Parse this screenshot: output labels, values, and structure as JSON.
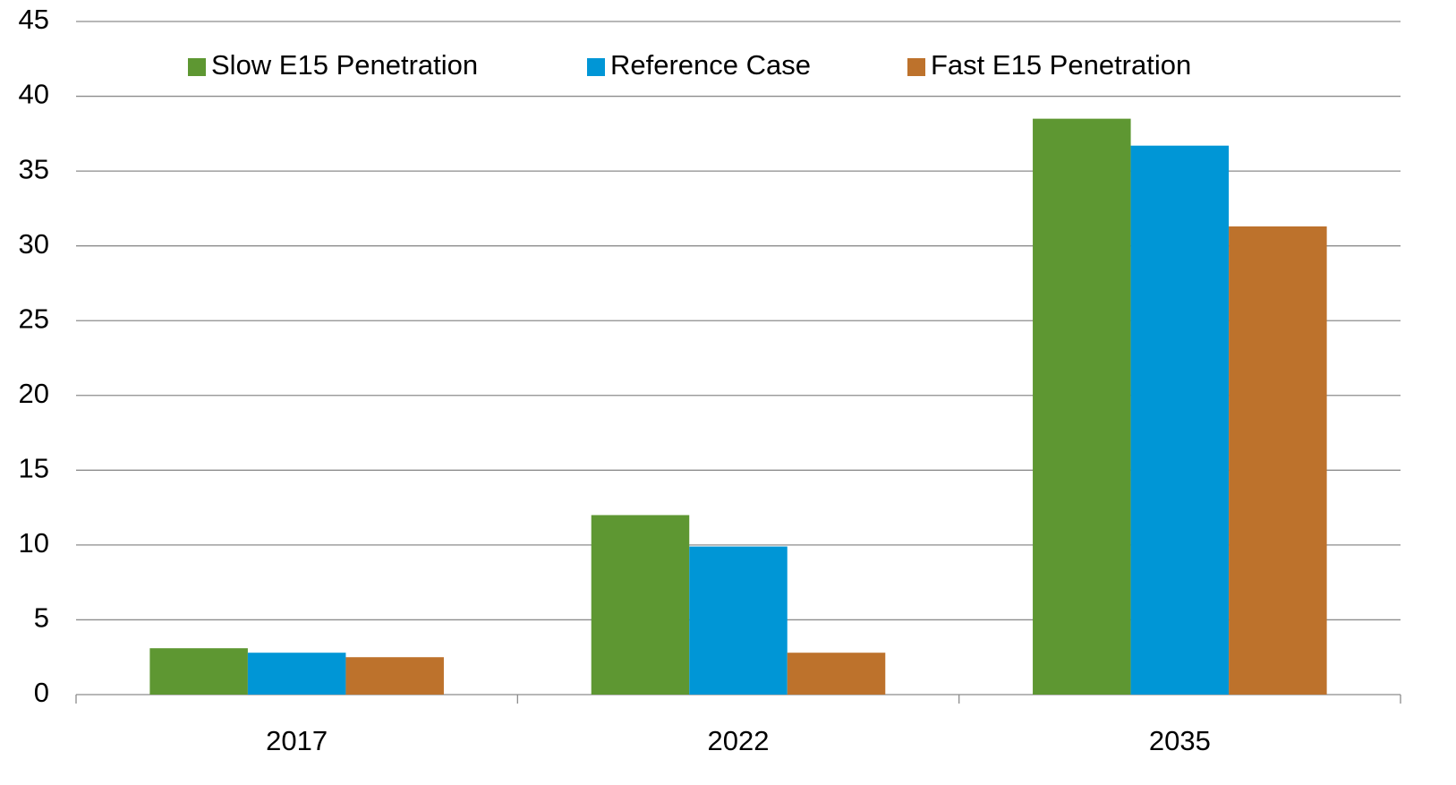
{
  "chart_data": {
    "type": "bar",
    "categories": [
      "2017",
      "2022",
      "2035"
    ],
    "series": [
      {
        "name": "Slow E15 Penetration",
        "color": "#5e9732",
        "values": [
          3.1,
          12.0,
          38.5
        ]
      },
      {
        "name": "Reference Case",
        "color": "#0096d6",
        "values": [
          2.8,
          9.9,
          36.7
        ]
      },
      {
        "name": "Fast E15 Penetration",
        "color": "#bd722c",
        "values": [
          2.5,
          2.8,
          31.3
        ]
      }
    ],
    "ylim": [
      0,
      45
    ],
    "yticks": [
      0,
      5,
      10,
      15,
      20,
      25,
      30,
      35,
      40,
      45
    ],
    "grid": true,
    "legend": "top"
  }
}
